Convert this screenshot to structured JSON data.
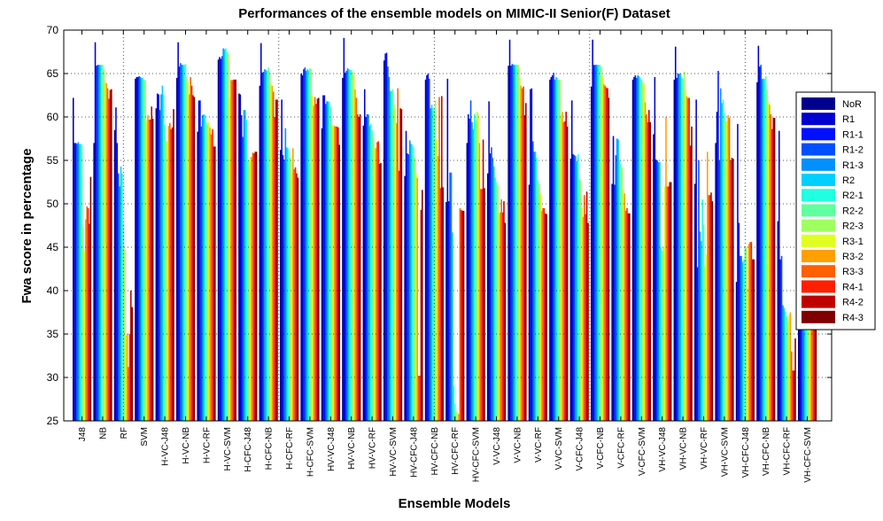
{
  "chart_data": {
    "type": "bar",
    "title": "Performances of the ensemble models on MIMIC-II Senior(F) Dataset",
    "xlabel": "Ensemble Models",
    "ylabel": "Fwa score in percentage",
    "ylim": [
      25,
      70
    ],
    "yticks": [
      25,
      30,
      35,
      40,
      45,
      50,
      55,
      60,
      65,
      70
    ],
    "grid": true,
    "legend_position": "right",
    "categories": [
      "J48",
      "NB",
      "RF",
      "SVM",
      "H-VC-J48",
      "H-VC-NB",
      "H-VC-RF",
      "H-VC-SVM",
      "H-CFC-J48",
      "H-CFC-NB",
      "H-CFC-RF",
      "H-CFC-SVM",
      "HV-VC-J48",
      "HV-VC-NB",
      "HV-VC-RF",
      "HV-VC-SVM",
      "HV-CFC-J48",
      "HV-CFC-NB",
      "HV-CFC-RF",
      "HV-CFC-SVM",
      "V-VC-J48",
      "V-VC-NB",
      "V-VC-RF",
      "V-VC-SVM",
      "V-CFC-J48",
      "V-CFC-NB",
      "V-CFC-RF",
      "V-CFC-SVM",
      "VH-VC-J48",
      "VH-VC-NB",
      "VH-VC-RF",
      "VH-VC-SVM",
      "VH-CFC-J48",
      "VH-CFC-NB",
      "VH-CFC-RF",
      "VH-CFC-SVM"
    ],
    "series": [
      {
        "name": "NoR",
        "color": "#00008f",
        "values": [
          62.2,
          57.0,
          58.5,
          64.4,
          61.0,
          64.5,
          58.3,
          66.6,
          62.7,
          63.6,
          56.2,
          65.0,
          58.7,
          64.5,
          59.0,
          66.5,
          53.2,
          64.3,
          50.2,
          57.0,
          53.5,
          65.9,
          52.2,
          64.3,
          55.2,
          63.5,
          52.3,
          64.3,
          58.0,
          64.3,
          52.3,
          57.0,
          41.0,
          64.0,
          48.0,
          49.2
        ]
      },
      {
        "name": "R1",
        "color": "#0000cf",
        "values": [
          57.0,
          68.6,
          61.1,
          64.6,
          62.7,
          68.6,
          61.9,
          66.9,
          62.6,
          68.5,
          62.0,
          64.8,
          62.5,
          69.1,
          63.2,
          67.3,
          58.4,
          64.8,
          64.4,
          60.3,
          61.8,
          68.9,
          63.2,
          64.6,
          61.9,
          68.9,
          57.8,
          64.6,
          64.6,
          68.1,
          62.0,
          60.6,
          59.2,
          68.2,
          58.4,
          62.9
        ]
      },
      {
        "name": "R1-1",
        "color": "#0010ff",
        "values": [
          57.0,
          65.9,
          57.0,
          64.6,
          62.6,
          65.8,
          61.9,
          66.7,
          60.2,
          65.1,
          55.6,
          65.5,
          62.5,
          65.1,
          60.0,
          67.4,
          55.8,
          65.0,
          50.3,
          59.8,
          55.8,
          65.9,
          63.3,
          64.8,
          55.7,
          66.0,
          52.2,
          64.8,
          55.1,
          64.5,
          42.7,
          65.3,
          47.8,
          65.8,
          43.6,
          49.7
        ]
      },
      {
        "name": "R1-2",
        "color": "#0050ff",
        "values": [
          56.9,
          66.0,
          53.5,
          64.7,
          60.8,
          66.2,
          58.9,
          67.0,
          57.7,
          65.2,
          55.1,
          65.7,
          61.5,
          65.3,
          60.3,
          65.8,
          55.7,
          64.4,
          53.6,
          61.9,
          56.5,
          66.1,
          57.2,
          65.1,
          55.6,
          66.0,
          55.6,
          64.5,
          55.0,
          65.0,
          55.0,
          55.0,
          44.0,
          66.0,
          44.0,
          54.2
        ]
      },
      {
        "name": "R1-3",
        "color": "#0090ff",
        "values": [
          57.1,
          66.0,
          52.0,
          64.6,
          62.6,
          66.0,
          60.2,
          67.9,
          60.8,
          65.5,
          58.7,
          65.3,
          61.8,
          65.6,
          60.3,
          64.6,
          57.3,
          61.0,
          53.6,
          59.4,
          55.3,
          66.0,
          56.0,
          64.3,
          55.5,
          66.0,
          57.5,
          64.8,
          54.8,
          65.0,
          46.8,
          63.3,
          44.0,
          64.4,
          38.3,
          54.7
        ]
      },
      {
        "name": "R2",
        "color": "#00d0ff",
        "values": [
          56.9,
          66.0,
          54.3,
          64.5,
          63.6,
          66.0,
          60.3,
          67.8,
          60.8,
          65.4,
          56.5,
          65.5,
          61.8,
          65.5,
          59.0,
          63.0,
          56.9,
          61.4,
          46.7,
          58.6,
          54.3,
          66.0,
          56.0,
          64.6,
          54.9,
          66.0,
          57.4,
          64.7,
          54.8,
          65.0,
          45.7,
          61.6,
          43.3,
          64.4,
          38.0,
          51.7
        ]
      },
      {
        "name": "R2-1",
        "color": "#20ffdf",
        "values": [
          56.9,
          66.0,
          53.5,
          64.5,
          62.6,
          66.0,
          60.2,
          67.9,
          59.7,
          65.3,
          56.4,
          65.4,
          61.7,
          65.4,
          59.2,
          63.0,
          56.8,
          61.0,
          29.0,
          60.3,
          53.0,
          66.0,
          55.3,
          64.5,
          55.7,
          66.0,
          55.0,
          64.5,
          45.0,
          64.6,
          50.5,
          62.0,
          43.6,
          64.4,
          37.6,
          51.0
        ]
      },
      {
        "name": "R2-2",
        "color": "#60ff9f",
        "values": [
          56.8,
          66.0,
          47.8,
          64.3,
          59.1,
          66.1,
          59.4,
          67.5,
          55.0,
          65.7,
          55.3,
          65.6,
          61.2,
          65.4,
          58.5,
          63.2,
          56.5,
          60.9,
          27.0,
          59.6,
          52.5,
          66.0,
          52.7,
          64.3,
          52.9,
          66.0,
          54.6,
          64.3,
          44.6,
          64.4,
          47.6,
          60.5,
          45.0,
          64.7,
          37.0,
          50.6
        ]
      },
      {
        "name": "R2-3",
        "color": "#a0ff60",
        "values": [
          47.3,
          65.5,
          44.7,
          64.2,
          57.2,
          64.6,
          59.1,
          67.3,
          55.0,
          65.1,
          55.3,
          65.5,
          59.0,
          65.2,
          57.7,
          61.4,
          55.3,
          61.9,
          26.0,
          60.6,
          52.1,
          66.0,
          52.3,
          64.3,
          52.7,
          65.8,
          54.2,
          64.0,
          45.0,
          65.2,
          42.8,
          59.5,
          45.0,
          63.1,
          36.5,
          49.8
        ]
      },
      {
        "name": "R3-1",
        "color": "#e0ff20",
        "values": [
          44.6,
          64.0,
          34.8,
          59.6,
          57.2,
          64.0,
          59.4,
          62.2,
          55.4,
          63.9,
          53.5,
          62.5,
          59.0,
          64.8,
          56.4,
          61.0,
          53.5,
          57.4,
          26.0,
          60.4,
          49.0,
          64.5,
          51.2,
          60.2,
          49.6,
          64.7,
          51.7,
          63.8,
          52.0,
          63.1,
          44.2,
          59.5,
          40.2,
          61.7,
          37.2,
          45.7
        ]
      },
      {
        "name": "R3-2",
        "color": "#ffa000",
        "values": [
          48.2,
          63.9,
          35.0,
          60.2,
          59.0,
          62.6,
          58.8,
          64.3,
          55.4,
          63.6,
          56.4,
          61.3,
          59.0,
          63.2,
          56.4,
          59.3,
          53.0,
          55.5,
          25.8,
          57.0,
          49.0,
          63.6,
          49.2,
          60.6,
          48.5,
          63.8,
          51.2,
          61.7,
          60.0,
          62.4,
          56.0,
          60.2,
          45.4,
          61.4,
          37.5,
          45.3
        ]
      },
      {
        "name": "R3-3",
        "color": "#ff6000",
        "values": [
          49.7,
          63.3,
          31.2,
          59.7,
          59.3,
          64.6,
          58.0,
          64.2,
          55.9,
          62.9,
          54.0,
          62.3,
          58.9,
          62.2,
          57.1,
          63.3,
          30.2,
          62.3,
          49.5,
          51.7,
          50.5,
          63.3,
          49.5,
          59.4,
          51.0,
          63.6,
          49.2,
          60.3,
          52.0,
          62.2,
          51.0,
          59.9,
          45.6,
          60.3,
          33.0,
          42.1
        ]
      },
      {
        "name": "R4-1",
        "color": "#ff2000",
        "values": [
          49.5,
          62.1,
          35.0,
          59.7,
          58.6,
          63.6,
          58.6,
          64.3,
          55.8,
          60.0,
          54.2,
          61.5,
          58.9,
          60.3,
          57.2,
          53.8,
          30.2,
          51.8,
          49.3,
          51.7,
          49.0,
          63.5,
          49.5,
          59.5,
          48.8,
          63.4,
          49.5,
          59.4,
          52.0,
          62.2,
          51.0,
          55.0,
          45.6,
          58.6,
          30.8,
          41.7
        ]
      },
      {
        "name": "R4-2",
        "color": "#bf0000",
        "values": [
          47.7,
          63.1,
          40.0,
          61.2,
          58.8,
          62.5,
          56.6,
          64.3,
          56.0,
          62.0,
          53.5,
          62.1,
          58.8,
          60.0,
          54.6,
          61.0,
          49.3,
          62.4,
          49.2,
          57.4,
          50.3,
          60.2,
          48.9,
          60.6,
          51.4,
          63.3,
          48.9,
          60.8,
          52.5,
          56.7,
          51.3,
          55.3,
          43.6,
          59.9,
          30.8,
          45.0
        ]
      },
      {
        "name": "R4-3",
        "color": "#800000",
        "values": [
          53.1,
          63.2,
          38.1,
          59.8,
          60.9,
          62.3,
          56.6,
          64.3,
          56.0,
          62.0,
          53.0,
          62.2,
          56.8,
          60.3,
          54.7,
          60.9,
          51.6,
          51.9,
          49.2,
          51.8,
          47.8,
          61.6,
          48.8,
          58.9,
          47.8,
          62.2,
          48.9,
          59.4,
          52.5,
          58.9,
          50.3,
          55.2,
          43.6,
          59.9,
          34.5,
          45.6
        ]
      }
    ]
  }
}
